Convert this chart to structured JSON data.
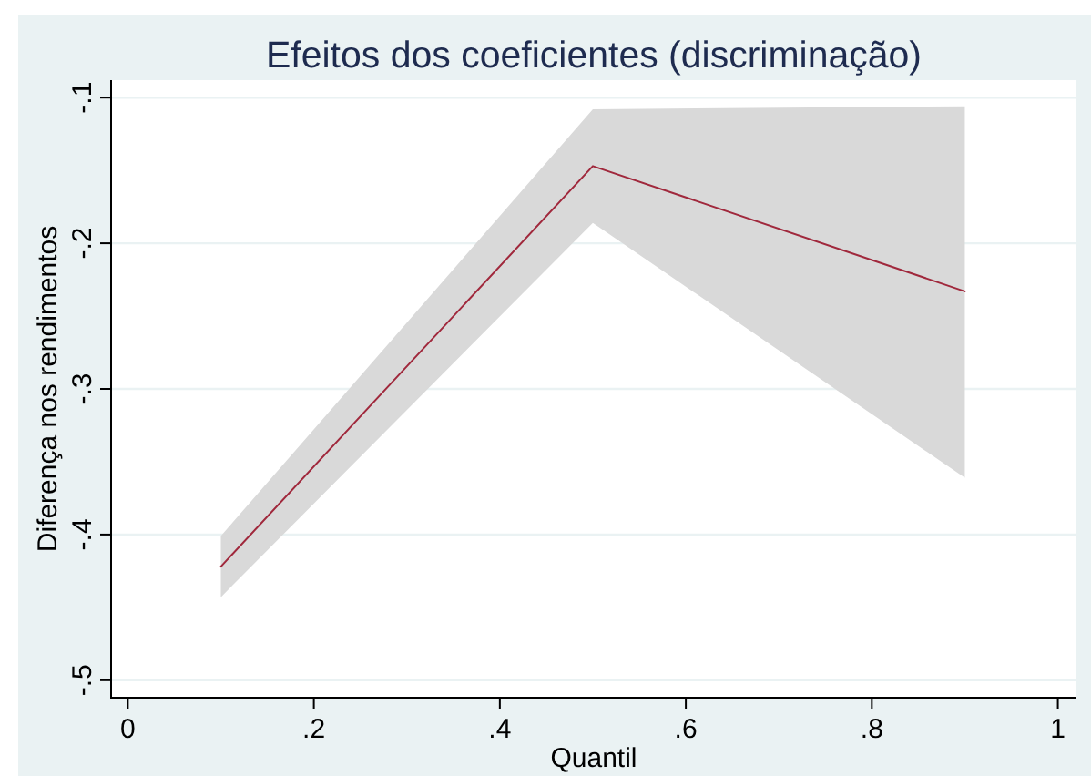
{
  "chart_data": {
    "type": "line",
    "title": "Efeitos dos coeficientes (discriminação)",
    "xlabel": "Quantil",
    "ylabel": "Diferença nos rendimentos",
    "x": [
      0.1,
      0.5,
      0.9
    ],
    "series": [
      {
        "color": "#a0283c",
        "values": [
          -0.422,
          -0.147,
          -0.233
        ],
        "lower": [
          -0.443,
          -0.186,
          -0.361
        ],
        "upper": [
          -0.401,
          -0.108,
          -0.106
        ]
      }
    ],
    "xlim": [
      -0.018,
      1.02
    ],
    "ylim": [
      -0.512,
      -0.088
    ],
    "xticks": [
      0,
      {
        "value": 0.2,
        "label": ".2"
      },
      {
        "value": 0.4,
        "label": ".4"
      },
      {
        "value": 0.6,
        "label": ".6"
      },
      {
        "value": 0.8,
        "label": ".8"
      },
      1
    ],
    "yticks": [
      {
        "value": -0.1,
        "label": "-.1"
      },
      {
        "value": -0.2,
        "label": "-.2"
      },
      {
        "value": -0.3,
        "label": "-.3"
      },
      {
        "value": -0.4,
        "label": "-.4"
      },
      {
        "value": -0.5,
        "label": "-.5"
      }
    ],
    "grid": "y"
  }
}
